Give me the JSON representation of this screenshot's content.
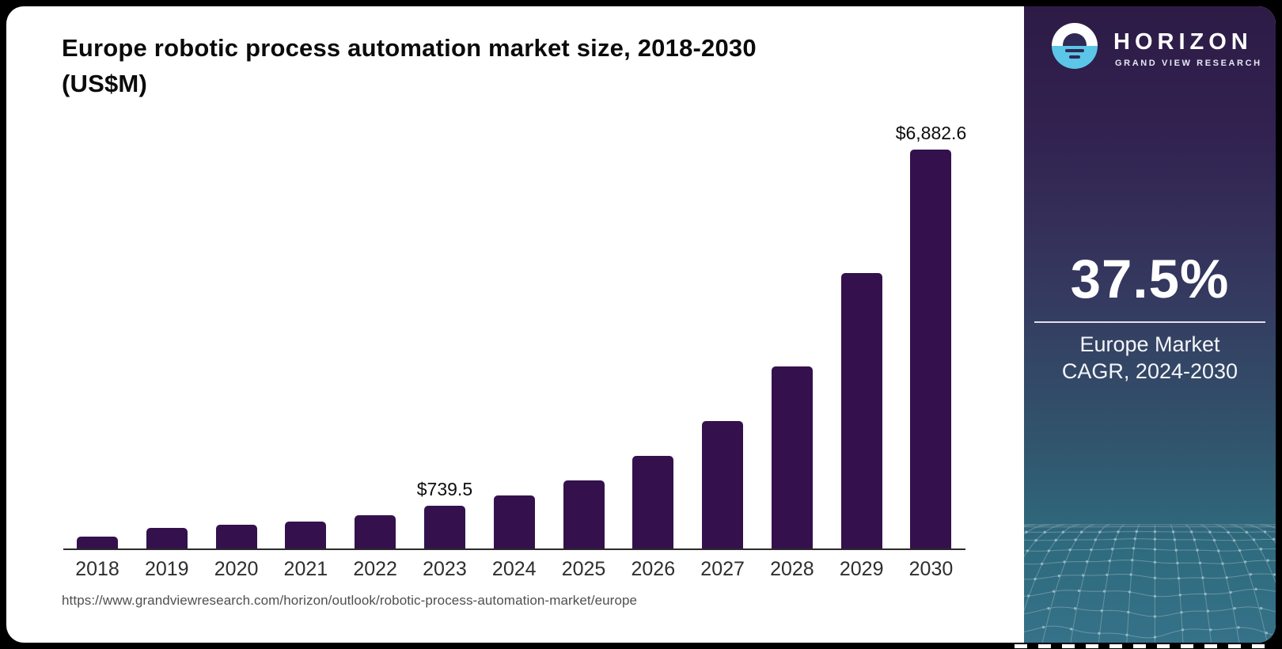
{
  "title": {
    "line1": "Europe robotic process automation market size, 2018-2030",
    "line2": "(US$M)"
  },
  "source": {
    "url": "https://www.grandviewresearch.com/horizon/outlook/robotic-process-automation-market/europe"
  },
  "chart_data": {
    "type": "bar",
    "title": "Europe robotic process automation market size, 2018-2030 (US$M)",
    "xlabel": "",
    "ylabel": "",
    "categories": [
      "2018",
      "2019",
      "2020",
      "2021",
      "2022",
      "2023",
      "2024",
      "2025",
      "2026",
      "2027",
      "2028",
      "2029",
      "2030"
    ],
    "values": [
      205,
      355,
      410,
      465,
      575,
      739.5,
      915,
      1175,
      1600,
      2200,
      3140,
      4750,
      6882.6
    ],
    "value_prefix": "$",
    "labeled_points": [
      {
        "index": 5,
        "category": "2023",
        "text": "$739.5"
      },
      {
        "index": 12,
        "category": "2030",
        "text": "$6,882.6"
      }
    ],
    "ylim": [
      0,
      6882.6
    ],
    "grid": false,
    "legend": false,
    "bar_color": "#34114d"
  },
  "sidebar": {
    "logo": {
      "brand": "HORIZON",
      "sub_brand": "GRAND VIEW RESEARCH",
      "accent_color": "#5bc6e8"
    },
    "stat": {
      "value": "37.5%",
      "line1": "Europe Market",
      "line2": "CAGR, 2024-2030"
    },
    "colors": {
      "top": "#2d1b46",
      "middle": "#353a60",
      "bottom": "#357289",
      "mesh_line": "#9bb7c2"
    }
  }
}
